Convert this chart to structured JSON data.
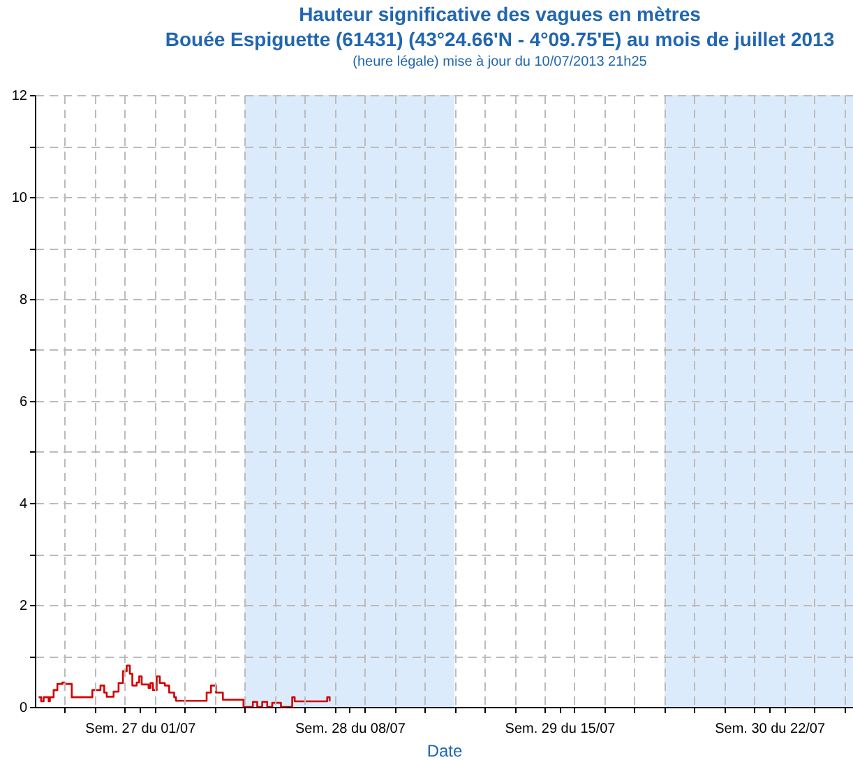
{
  "chart_data": {
    "type": "step",
    "title": "Hauteur significative des vagues en mètres",
    "subtitle": "Bouée Espiguette (61431) (43°24.66'N - 4°09.75'E) au mois de juillet 2013",
    "annotations": [
      "(heure légale) mise à jour du 10/07/2013 21h25"
    ],
    "xlabel": "Date",
    "xlim": [
      "2013-07-01T00:00",
      "2013-07-28T07:00"
    ],
    "xticks": [
      {
        "value": "2013-07-02T00:00",
        "label": null
      },
      {
        "value": "2013-07-03T00:00",
        "label": null
      },
      {
        "value": "2013-07-04T00:00",
        "label": null
      },
      {
        "value": "2013-07-04T12:00",
        "label": "Sem. 27 du 01/07"
      },
      {
        "value": "2013-07-05T00:00",
        "label": null
      },
      {
        "value": "2013-07-06T00:00",
        "label": null
      },
      {
        "value": "2013-07-07T00:00",
        "label": null
      },
      {
        "value": "2013-07-08T00:00",
        "label": null
      },
      {
        "value": "2013-07-09T00:00",
        "label": null
      },
      {
        "value": "2013-07-10T00:00",
        "label": null
      },
      {
        "value": "2013-07-11T00:00",
        "label": null
      },
      {
        "value": "2013-07-11T12:00",
        "label": "Sem. 28 du 08/07"
      },
      {
        "value": "2013-07-12T00:00",
        "label": null
      },
      {
        "value": "2013-07-13T00:00",
        "label": null
      },
      {
        "value": "2013-07-14T00:00",
        "label": null
      },
      {
        "value": "2013-07-15T00:00",
        "label": null
      },
      {
        "value": "2013-07-16T00:00",
        "label": null
      },
      {
        "value": "2013-07-17T00:00",
        "label": null
      },
      {
        "value": "2013-07-18T00:00",
        "label": null
      },
      {
        "value": "2013-07-18T12:00",
        "label": "Sem. 29 du 15/07"
      },
      {
        "value": "2013-07-19T00:00",
        "label": null
      },
      {
        "value": "2013-07-20T00:00",
        "label": null
      },
      {
        "value": "2013-07-21T00:00",
        "label": null
      },
      {
        "value": "2013-07-22T00:00",
        "label": null
      },
      {
        "value": "2013-07-23T00:00",
        "label": null
      },
      {
        "value": "2013-07-24T00:00",
        "label": null
      },
      {
        "value": "2013-07-25T00:00",
        "label": null
      },
      {
        "value": "2013-07-25T12:00",
        "label": "Sem. 30 du 22/07"
      },
      {
        "value": "2013-07-26T00:00",
        "label": null
      },
      {
        "value": "2013-07-27T00:00",
        "label": null
      },
      {
        "value": "2013-07-28T00:00",
        "label": null
      }
    ],
    "ylim": [
      0,
      12
    ],
    "yticks": [
      0,
      {
        "value": 1,
        "label": null
      },
      2,
      {
        "value": 3,
        "label": null
      },
      4,
      {
        "value": 5,
        "label": null
      },
      6,
      {
        "value": 7,
        "label": null
      },
      8,
      {
        "value": 9,
        "label": null
      },
      10,
      {
        "value": 11,
        "label": null
      },
      12
    ],
    "grid": true,
    "line_style": "solid",
    "bands": [
      {
        "axis": "x",
        "from": "2013-07-08T00:00",
        "to": "2013-07-15T00:00",
        "color": "#dcebfb"
      },
      {
        "axis": "x",
        "from": "2013-07-22T00:00",
        "to": "2013-07-28T07:00",
        "color": "#dcebfb"
      }
    ],
    "x": [
      "2013-07-01T03:00",
      "2013-07-01T05:00",
      "2013-07-01T07:00",
      "2013-07-01T11:00",
      "2013-07-01T12:00",
      "2013-07-01T15:00",
      "2013-07-01T18:00",
      "2013-07-01T22:00",
      "2013-07-02T00:00",
      "2013-07-02T05:30",
      "2013-07-02T22:00",
      "2013-07-03T04:30",
      "2013-07-03T07:30",
      "2013-07-03T09:30",
      "2013-07-03T15:00",
      "2013-07-03T19:00",
      "2013-07-03T22:30",
      "2013-07-04T01:30",
      "2013-07-04T04:00",
      "2013-07-04T06:00",
      "2013-07-04T09:30",
      "2013-07-04T11:30",
      "2013-07-04T13:30",
      "2013-07-04T19:00",
      "2013-07-04T20:30",
      "2013-07-04T22:30",
      "2013-07-05T01:30",
      "2013-07-05T04:00",
      "2013-07-05T08:00",
      "2013-07-05T11:30",
      "2013-07-05T15:30",
      "2013-07-05T17:00",
      "2013-07-06T17:30",
      "2013-07-06T21:00",
      "2013-07-07T01:00",
      "2013-07-07T06:30",
      "2013-07-07T23:00",
      "2013-07-08T06:30",
      "2013-07-08T10:00",
      "2013-07-08T14:00",
      "2013-07-08T18:00",
      "2013-07-08T22:00",
      "2013-07-09T05:00",
      "2013-07-09T14:00",
      "2013-07-09T16:00",
      "2013-07-10T18:00",
      "2013-07-10T20:00"
    ],
    "series": [
      {
        "color": "#d40000",
        "values": [
          0.19,
          0.11,
          0.19,
          0.11,
          0.19,
          0.33,
          0.45,
          0.48,
          0.45,
          0.19,
          0.33,
          0.42,
          0.28,
          0.2,
          0.3,
          0.47,
          0.7,
          0.81,
          0.65,
          0.42,
          0.48,
          0.6,
          0.44,
          0.37,
          0.47,
          0.33,
          0.6,
          0.47,
          0.42,
          0.28,
          0.19,
          0.12,
          0.28,
          0.42,
          0.28,
          0.14,
          0,
          0.1,
          0,
          0.1,
          0,
          0.08,
          0,
          0.19,
          0.11,
          0.19,
          0.11
        ]
      }
    ]
  }
}
